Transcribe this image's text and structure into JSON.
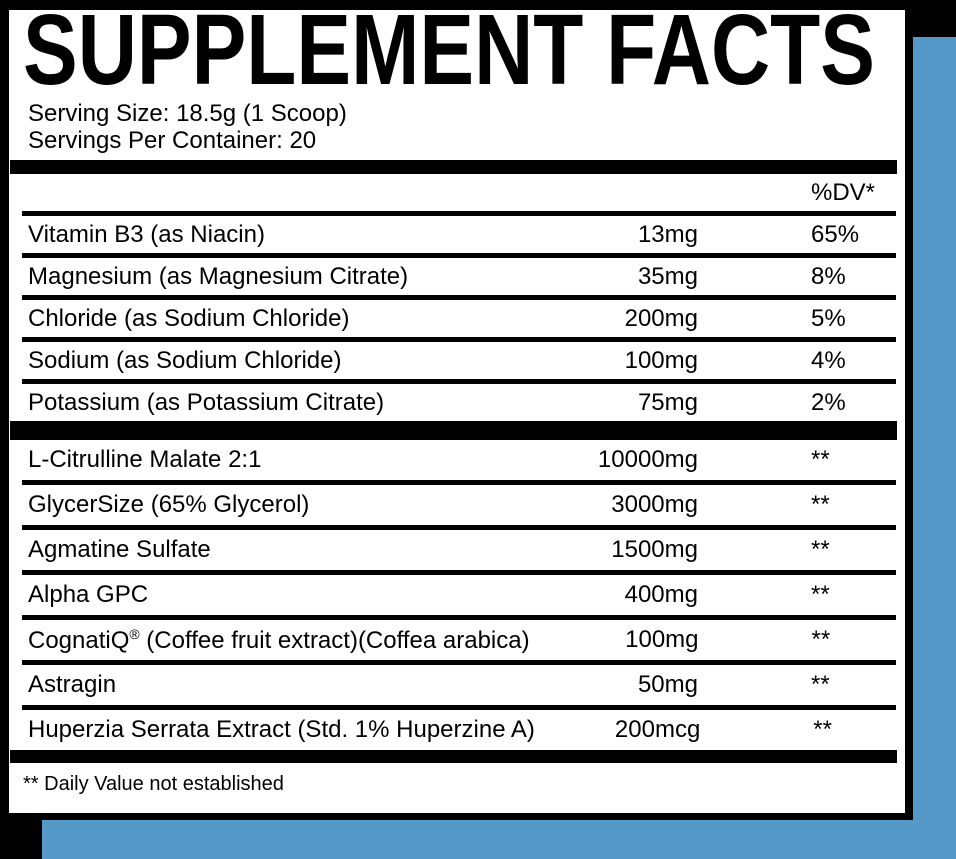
{
  "colors": {
    "accent_blue": "#5499C8",
    "frame_black": "#000000",
    "panel_white": "#FFFFFF"
  },
  "header": {
    "title": "SUPPLEMENT FACTS",
    "serving_size": "Serving Size: 18.5g (1 Scoop)",
    "servings_per_container": "Servings Per Container: 20"
  },
  "table": {
    "dv_header": "%DV*",
    "sections": [
      {
        "rows": [
          {
            "name": "Vitamin B3 (as Niacin)",
            "amount": "13mg",
            "dv": "65%"
          },
          {
            "name": "Magnesium (as Magnesium Citrate)",
            "amount": "35mg",
            "dv": "8%"
          },
          {
            "name": "Chloride (as Sodium Chloride)",
            "amount": "200mg",
            "dv": "5%"
          },
          {
            "name": "Sodium (as Sodium Chloride)",
            "amount": "100mg",
            "dv": "4%"
          },
          {
            "name": "Potassium (as Potassium Citrate)",
            "amount": "75mg",
            "dv": "2%"
          }
        ]
      },
      {
        "rows": [
          {
            "name": "L-Citrulline Malate 2:1",
            "amount": "10000mg",
            "dv": "**"
          },
          {
            "name": "GlycerSize (65% Glycerol)",
            "amount": "3000mg",
            "dv": "**"
          },
          {
            "name": "Agmatine Sulfate",
            "amount": "1500mg",
            "dv": "**"
          },
          {
            "name": "Alpha GPC",
            "amount": "400mg",
            "dv": "**"
          },
          {
            "name": "CognatiQ® (Coffee fruit extract)(Coffea arabica)",
            "amount": "100mg",
            "dv": "**"
          },
          {
            "name": "Astragin",
            "amount": "50mg",
            "dv": "**"
          },
          {
            "name": "Huperzia Serrata Extract (Std. 1% Huperzine A)",
            "amount": "200mcg",
            "dv": "**"
          }
        ]
      }
    ]
  },
  "footnote": "** Daily Value not established"
}
